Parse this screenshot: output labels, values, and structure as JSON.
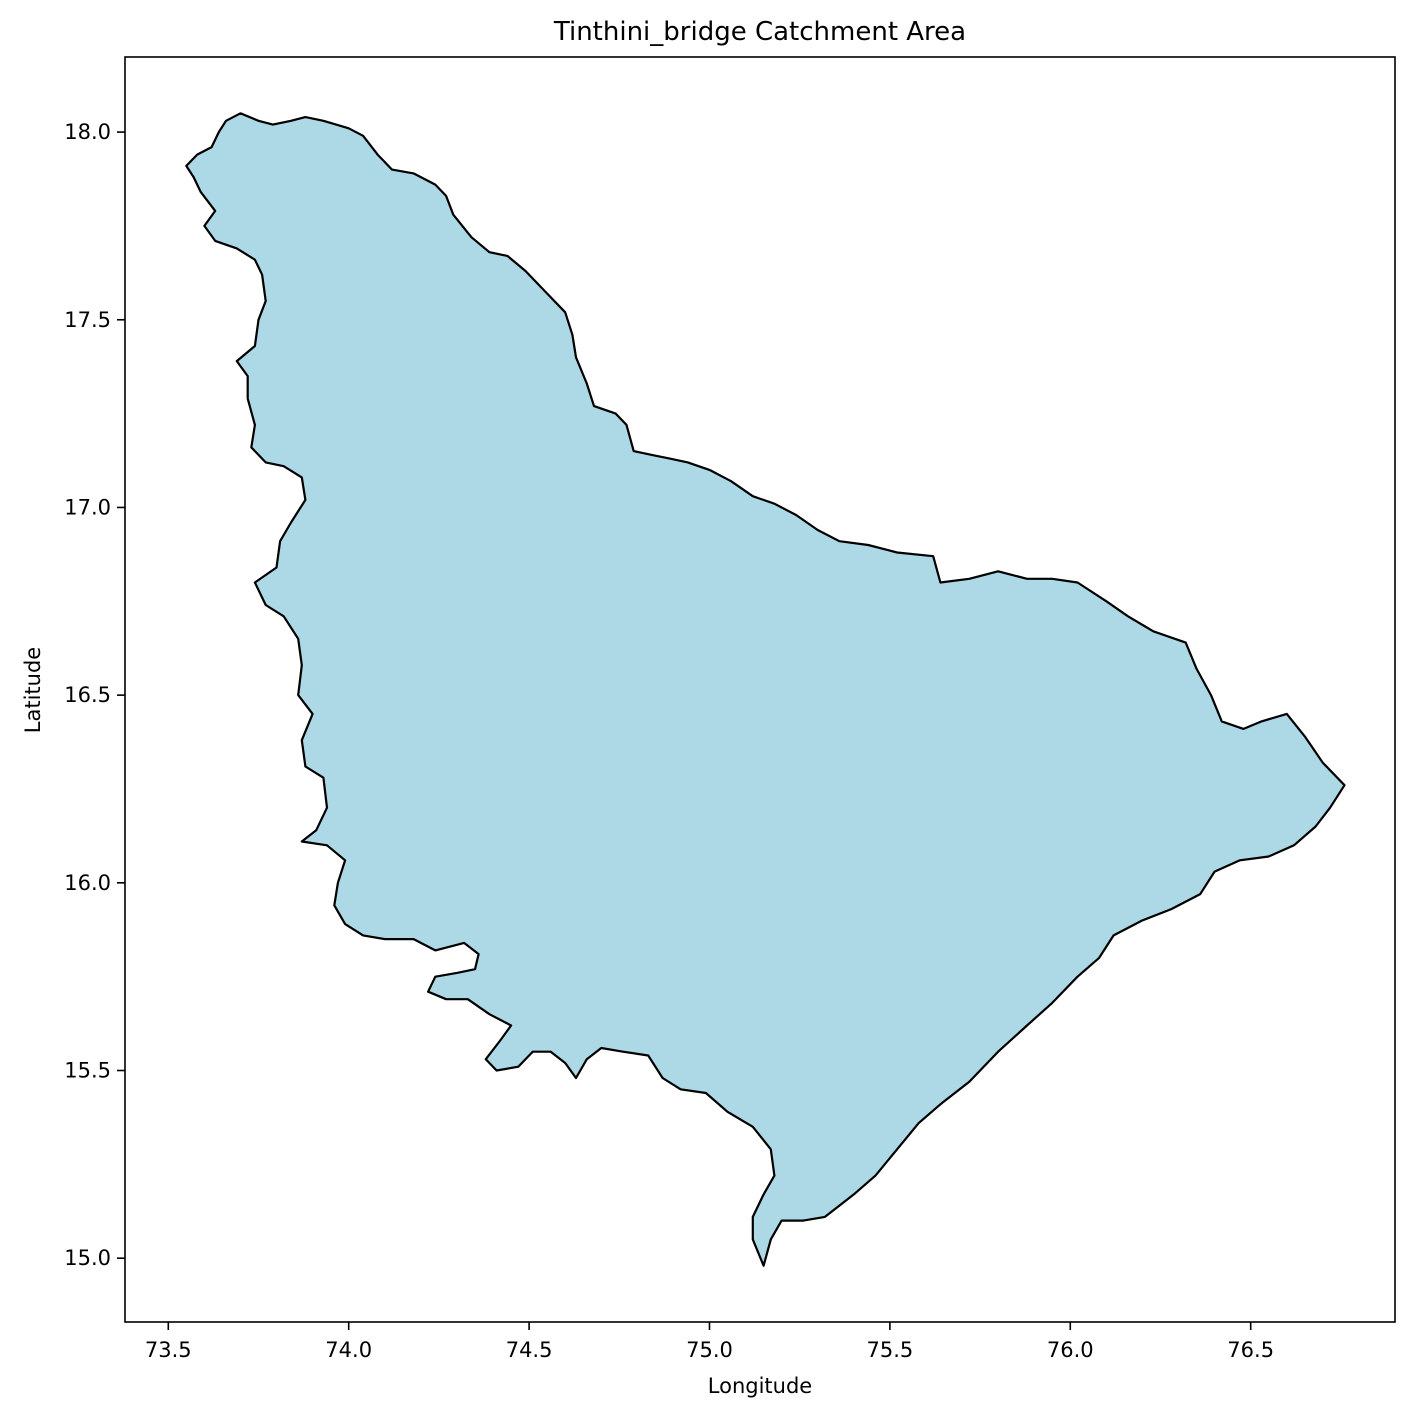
{
  "chart_data": {
    "type": "map",
    "title": "Tinthini_bridge Catchment Area",
    "xlabel": "Longitude",
    "ylabel": "Latitude",
    "xlim": [
      73.38,
      76.9
    ],
    "ylim": [
      14.83,
      18.2
    ],
    "xticks": [
      73.5,
      74.0,
      74.5,
      75.0,
      75.5,
      76.0,
      76.5
    ],
    "xtick_labels": [
      "73.5",
      "74.0",
      "74.5",
      "75.0",
      "75.5",
      "76.0",
      "76.5"
    ],
    "yticks": [
      15.0,
      15.5,
      16.0,
      16.5,
      17.0,
      17.5,
      18.0
    ],
    "ytick_labels": [
      "15.0",
      "15.5",
      "16.0",
      "16.5",
      "17.0",
      "17.5",
      "18.0"
    ],
    "grid": false,
    "polygon": {
      "name": "",
      "fill": "#add8e6",
      "edge": "#000000",
      "boundary": [
        [
          73.55,
          17.91
        ],
        [
          73.58,
          17.94
        ],
        [
          73.62,
          17.96
        ],
        [
          73.64,
          18.0
        ],
        [
          73.66,
          18.03
        ],
        [
          73.7,
          18.05
        ],
        [
          73.75,
          18.03
        ],
        [
          73.79,
          18.02
        ],
        [
          73.84,
          18.03
        ],
        [
          73.88,
          18.04
        ],
        [
          73.93,
          18.03
        ],
        [
          74.0,
          18.01
        ],
        [
          74.04,
          17.99
        ],
        [
          74.08,
          17.94
        ],
        [
          74.12,
          17.9
        ],
        [
          74.18,
          17.89
        ],
        [
          74.24,
          17.86
        ],
        [
          74.27,
          17.83
        ],
        [
          74.29,
          17.78
        ],
        [
          74.34,
          17.72
        ],
        [
          74.39,
          17.68
        ],
        [
          74.44,
          17.67
        ],
        [
          74.49,
          17.63
        ],
        [
          74.55,
          17.57
        ],
        [
          74.6,
          17.52
        ],
        [
          74.62,
          17.46
        ],
        [
          74.63,
          17.4
        ],
        [
          74.66,
          17.33
        ],
        [
          74.68,
          17.27
        ],
        [
          74.74,
          17.25
        ],
        [
          74.77,
          17.22
        ],
        [
          74.79,
          17.15
        ],
        [
          74.84,
          17.14
        ],
        [
          74.89,
          17.13
        ],
        [
          74.94,
          17.12
        ],
        [
          75.0,
          17.1
        ],
        [
          75.06,
          17.07
        ],
        [
          75.12,
          17.03
        ],
        [
          75.18,
          17.01
        ],
        [
          75.24,
          16.98
        ],
        [
          75.3,
          16.94
        ],
        [
          75.36,
          16.91
        ],
        [
          75.44,
          16.9
        ],
        [
          75.52,
          16.88
        ],
        [
          75.62,
          16.87
        ],
        [
          75.64,
          16.8
        ],
        [
          75.72,
          16.81
        ],
        [
          75.8,
          16.83
        ],
        [
          75.88,
          16.81
        ],
        [
          75.95,
          16.81
        ],
        [
          76.02,
          16.8
        ],
        [
          76.1,
          16.75
        ],
        [
          76.16,
          16.71
        ],
        [
          76.23,
          16.67
        ],
        [
          76.32,
          16.64
        ],
        [
          76.35,
          16.57
        ],
        [
          76.39,
          16.5
        ],
        [
          76.42,
          16.43
        ],
        [
          76.48,
          16.41
        ],
        [
          76.53,
          16.43
        ],
        [
          76.6,
          16.45
        ],
        [
          76.65,
          16.39
        ],
        [
          76.7,
          16.32
        ],
        [
          76.76,
          16.26
        ],
        [
          76.72,
          16.2
        ],
        [
          76.68,
          16.15
        ],
        [
          76.62,
          16.1
        ],
        [
          76.55,
          16.07
        ],
        [
          76.47,
          16.06
        ],
        [
          76.4,
          16.03
        ],
        [
          76.36,
          15.97
        ],
        [
          76.28,
          15.93
        ],
        [
          76.2,
          15.9
        ],
        [
          76.12,
          15.86
        ],
        [
          76.08,
          15.8
        ],
        [
          76.02,
          15.75
        ],
        [
          75.95,
          15.68
        ],
        [
          75.88,
          15.62
        ],
        [
          75.8,
          15.55
        ],
        [
          75.72,
          15.47
        ],
        [
          75.64,
          15.41
        ],
        [
          75.58,
          15.36
        ],
        [
          75.52,
          15.29
        ],
        [
          75.46,
          15.22
        ],
        [
          75.4,
          15.17
        ],
        [
          75.36,
          15.14
        ],
        [
          75.32,
          15.11
        ],
        [
          75.26,
          15.1
        ],
        [
          75.2,
          15.1
        ],
        [
          75.17,
          15.05
        ],
        [
          75.15,
          14.98
        ],
        [
          75.12,
          15.05
        ],
        [
          75.12,
          15.11
        ],
        [
          75.15,
          15.17
        ],
        [
          75.18,
          15.22
        ],
        [
          75.17,
          15.29
        ],
        [
          75.12,
          15.35
        ],
        [
          75.05,
          15.39
        ],
        [
          74.99,
          15.44
        ],
        [
          74.92,
          15.45
        ],
        [
          74.87,
          15.48
        ],
        [
          74.83,
          15.54
        ],
        [
          74.76,
          15.55
        ],
        [
          74.7,
          15.56
        ],
        [
          74.66,
          15.53
        ],
        [
          74.63,
          15.48
        ],
        [
          74.6,
          15.52
        ],
        [
          74.56,
          15.55
        ],
        [
          74.51,
          15.55
        ],
        [
          74.47,
          15.51
        ],
        [
          74.41,
          15.5
        ],
        [
          74.38,
          15.53
        ],
        [
          74.42,
          15.58
        ],
        [
          74.45,
          15.62
        ],
        [
          74.39,
          15.65
        ],
        [
          74.33,
          15.69
        ],
        [
          74.27,
          15.69
        ],
        [
          74.22,
          15.71
        ],
        [
          74.24,
          15.75
        ],
        [
          74.3,
          15.76
        ],
        [
          74.35,
          15.77
        ],
        [
          74.36,
          15.81
        ],
        [
          74.32,
          15.84
        ],
        [
          74.24,
          15.82
        ],
        [
          74.18,
          15.85
        ],
        [
          74.1,
          15.85
        ],
        [
          74.04,
          15.86
        ],
        [
          73.99,
          15.89
        ],
        [
          73.96,
          15.94
        ],
        [
          73.97,
          16.0
        ],
        [
          73.99,
          16.06
        ],
        [
          73.94,
          16.1
        ],
        [
          73.87,
          16.11
        ],
        [
          73.91,
          16.14
        ],
        [
          73.94,
          16.2
        ],
        [
          73.93,
          16.28
        ],
        [
          73.88,
          16.31
        ],
        [
          73.87,
          16.38
        ],
        [
          73.9,
          16.45
        ],
        [
          73.86,
          16.5
        ],
        [
          73.87,
          16.58
        ],
        [
          73.86,
          16.65
        ],
        [
          73.82,
          16.71
        ],
        [
          73.77,
          16.74
        ],
        [
          73.74,
          16.8
        ],
        [
          73.8,
          16.84
        ],
        [
          73.81,
          16.91
        ],
        [
          73.84,
          16.96
        ],
        [
          73.88,
          17.02
        ],
        [
          73.87,
          17.08
        ],
        [
          73.82,
          17.11
        ],
        [
          73.77,
          17.12
        ],
        [
          73.73,
          17.16
        ],
        [
          73.74,
          17.22
        ],
        [
          73.72,
          17.29
        ],
        [
          73.72,
          17.35
        ],
        [
          73.69,
          17.39
        ],
        [
          73.74,
          17.43
        ],
        [
          73.75,
          17.5
        ],
        [
          73.77,
          17.55
        ],
        [
          73.76,
          17.62
        ],
        [
          73.74,
          17.66
        ],
        [
          73.69,
          17.69
        ],
        [
          73.63,
          17.71
        ],
        [
          73.6,
          17.75
        ],
        [
          73.63,
          17.79
        ],
        [
          73.59,
          17.84
        ],
        [
          73.57,
          17.88
        ]
      ]
    }
  }
}
